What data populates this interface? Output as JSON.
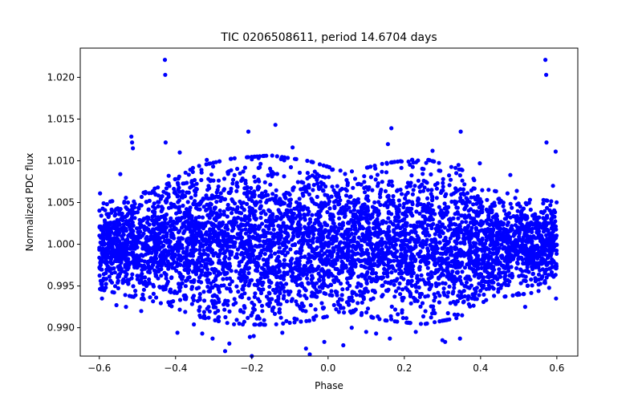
{
  "chart_data": {
    "type": "scatter",
    "title": "TIC 0206508611, period 14.6704 days",
    "xlabel": "Phase",
    "ylabel": "Normalized PDC flux",
    "xlim": [
      -0.65,
      0.655
    ],
    "ylim": [
      0.9866,
      1.0235
    ],
    "xticks": [
      -0.6,
      -0.4,
      -0.2,
      0.0,
      0.2,
      0.4,
      0.6
    ],
    "xtick_labels": [
      "−0.6",
      "−0.4",
      "−0.2",
      "0.0",
      "0.2",
      "0.4",
      "0.6"
    ],
    "yticks": [
      0.99,
      0.995,
      1.0,
      1.005,
      1.01,
      1.015,
      1.02
    ],
    "ytick_labels": [
      "0.990",
      "0.995",
      "1.000",
      "1.005",
      "1.010",
      "1.015",
      "1.020"
    ],
    "grid": false,
    "marker_color": "#0000ff",
    "series": [
      {
        "values_description_note": "",
        "points": [
          [
            -0.598,
            1.0061
          ],
          [
            -0.593,
            0.9935
          ],
          [
            -0.58,
            1.0048
          ],
          [
            -0.555,
            0.9927
          ],
          [
            -0.545,
            1.0084
          ],
          [
            -0.53,
            0.9925
          ],
          [
            -0.516,
            1.0129
          ],
          [
            -0.514,
            1.0122
          ],
          [
            -0.512,
            1.0115
          ],
          [
            -0.505,
            0.9939
          ],
          [
            -0.49,
            0.992
          ],
          [
            -0.48,
            1.0061
          ],
          [
            -0.428,
            1.0221
          ],
          [
            -0.427,
            1.0203
          ],
          [
            -0.426,
            1.0122
          ],
          [
            -0.418,
            1.0082
          ],
          [
            -0.395,
            0.9894
          ],
          [
            -0.389,
            1.011
          ],
          [
            -0.352,
            0.9904
          ],
          [
            -0.33,
            0.9893
          ],
          [
            -0.318,
            1.0101
          ],
          [
            -0.303,
            0.9887
          ],
          [
            -0.27,
            0.9872
          ],
          [
            -0.259,
            0.9881
          ],
          [
            -0.209,
            1.0135
          ],
          [
            -0.205,
            0.9889
          ],
          [
            -0.2,
            0.9866
          ],
          [
            -0.195,
            0.989
          ],
          [
            -0.138,
            1.0143
          ],
          [
            -0.12,
            0.9894
          ],
          [
            -0.093,
            1.0116
          ],
          [
            -0.058,
            0.9875
          ],
          [
            -0.048,
            0.9868
          ],
          [
            -0.01,
            0.9883
          ],
          [
            0.04,
            0.9879
          ],
          [
            0.062,
            0.99
          ],
          [
            0.1,
            0.9895
          ],
          [
            0.126,
            0.9893
          ],
          [
            0.157,
            1.012
          ],
          [
            0.166,
            1.0139
          ],
          [
            0.162,
            0.9887
          ],
          [
            0.23,
            0.9895
          ],
          [
            0.274,
            1.0112
          ],
          [
            0.3,
            0.9885
          ],
          [
            0.307,
            0.9883
          ],
          [
            0.342,
            1.0095
          ],
          [
            0.346,
            0.9887
          ],
          [
            0.348,
            1.0135
          ],
          [
            0.398,
            1.0097
          ],
          [
            0.478,
            1.0083
          ],
          [
            0.495,
            1.0064
          ],
          [
            0.517,
            0.9925
          ],
          [
            0.552,
            0.9944
          ],
          [
            0.57,
            1.0221
          ],
          [
            0.572,
            1.0203
          ],
          [
            0.573,
            1.0122
          ],
          [
            0.59,
            1.007
          ],
          [
            0.597,
            1.0111
          ],
          [
            0.598,
            0.9935
          ]
        ]
      }
    ],
    "bulk_band": [
      {
        "x": -0.6,
        "low": 0.9962,
        "high": 1.0032
      },
      {
        "x": -0.5,
        "low": 0.9955,
        "high": 1.004
      },
      {
        "x": -0.42,
        "low": 0.995,
        "high": 1.005
      },
      {
        "x": -0.35,
        "low": 0.9942,
        "high": 1.0065
      },
      {
        "x": -0.25,
        "low": 0.9935,
        "high": 1.0072
      },
      {
        "x": -0.15,
        "low": 0.9935,
        "high": 1.0075
      },
      {
        "x": -0.05,
        "low": 0.9938,
        "high": 1.007
      },
      {
        "x": 0.05,
        "low": 0.9945,
        "high": 1.006
      },
      {
        "x": 0.15,
        "low": 0.9938,
        "high": 1.0068
      },
      {
        "x": 0.25,
        "low": 0.9935,
        "high": 1.0072
      },
      {
        "x": 0.35,
        "low": 0.994,
        "high": 1.0062
      },
      {
        "x": 0.42,
        "low": 0.9955,
        "high": 1.0045
      },
      {
        "x": 0.5,
        "low": 0.9958,
        "high": 1.004
      },
      {
        "x": 0.6,
        "low": 0.9962,
        "high": 1.0034
      }
    ]
  }
}
